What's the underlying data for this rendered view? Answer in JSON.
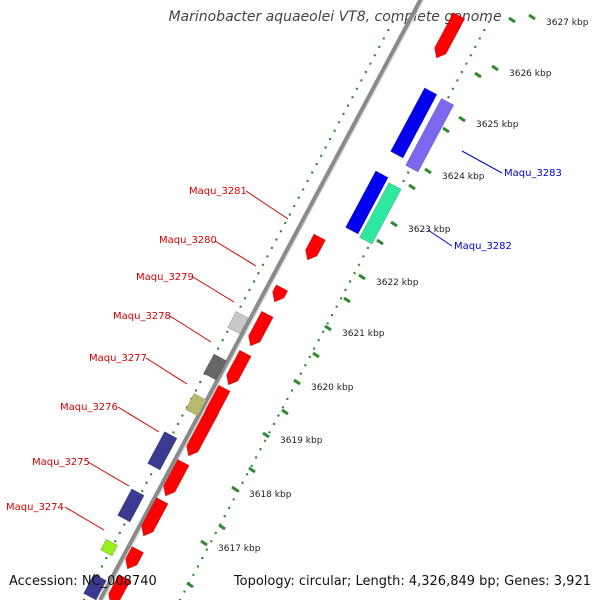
{
  "header": {
    "title": "Marinobacter aquaeolei VT8, complete genome"
  },
  "footer": {
    "accession": "Accession: NC_008740",
    "summary": "Topology: circular; Length: 4,326,849 bp; Genes: 3,921"
  },
  "colors": {
    "backbone": "#8a8a8a",
    "tick": "#2e8b2e",
    "ticklabel": "#222222",
    "label_reverse": "#d40000",
    "label_forward": "#0000cc",
    "cds_red": "#ff0000",
    "cds_blue": "#0000ee",
    "cds_lavender": "#7b68ee",
    "cds_aqua": "#2ee8a0",
    "cds_navy": "#3a3a90",
    "cds_olive": "#b8b870",
    "cds_darkgray": "#666666",
    "cds_lightgray": "#c8c8c8",
    "cds_lime": "#99ee22"
  },
  "ticks": [
    {
      "label": "3617 kbp"
    },
    {
      "label": "3618 kbp"
    },
    {
      "label": "3619 kbp"
    },
    {
      "label": "3620 kbp"
    },
    {
      "label": "3621 kbp"
    },
    {
      "label": "3622 kbp"
    },
    {
      "label": "3623 kbp"
    },
    {
      "label": "3624 kbp"
    },
    {
      "label": "3625 kbp"
    },
    {
      "label": "3626 kbp"
    },
    {
      "label": "3627 kbp"
    }
  ],
  "gene_labels": [
    {
      "label": "Maqu_3274",
      "strand": "reverse"
    },
    {
      "label": "Maqu_3275",
      "strand": "reverse"
    },
    {
      "label": "Maqu_3276",
      "strand": "reverse"
    },
    {
      "label": "Maqu_3277",
      "strand": "reverse"
    },
    {
      "label": "Maqu_3278",
      "strand": "reverse"
    },
    {
      "label": "Maqu_3279",
      "strand": "reverse"
    },
    {
      "label": "Maqu_3280",
      "strand": "reverse"
    },
    {
      "label": "Maqu_3281",
      "strand": "reverse"
    },
    {
      "label": "Maqu_3282",
      "strand": "forward"
    },
    {
      "label": "Maqu_3283",
      "strand": "forward"
    }
  ]
}
